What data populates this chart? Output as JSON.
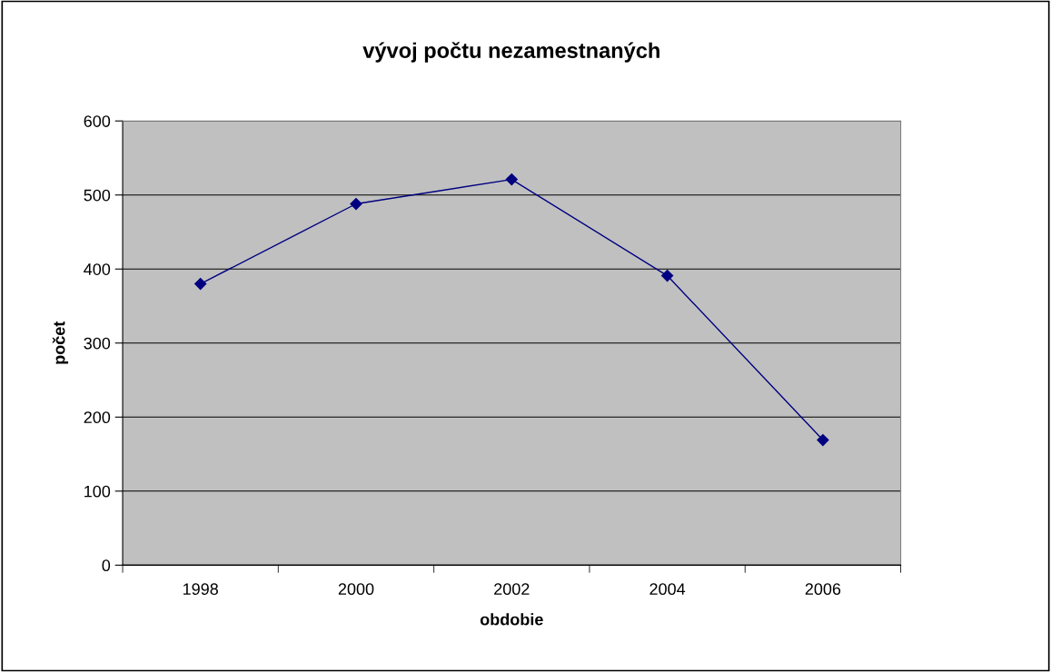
{
  "chart_data": {
    "type": "line",
    "title": "vývoj počtu nezamestnaných",
    "xlabel": "obdobie",
    "ylabel": "počet",
    "categories": [
      "1998",
      "2000",
      "2002",
      "2004",
      "2006"
    ],
    "series": [
      {
        "color": "#000080",
        "values": [
          380,
          488,
          521,
          391,
          169
        ]
      }
    ],
    "ylim": [
      0,
      600
    ],
    "yticks": [
      0,
      100,
      200,
      300,
      400,
      500,
      600
    ],
    "grid": "y",
    "marker": "diamond",
    "line_style": "solid"
  }
}
